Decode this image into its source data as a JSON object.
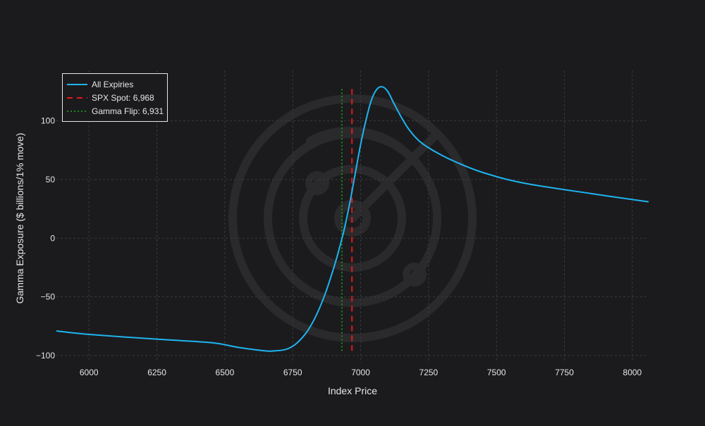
{
  "colors": {
    "background": "#1b1b1d",
    "gridline": "#3a3a3c",
    "text": "#e6e6e6",
    "all_expiries": "#1fb4f0",
    "spx_spot": "#e01b1b",
    "gamma_flip": "#1a8a1a",
    "watermark": "#2a2a2c"
  },
  "watermark_icon": "radar-logo-icon",
  "chart_data": {
    "type": "line",
    "title": "",
    "xlabel": "Index Price",
    "ylabel": "Gamma Exposure ($ billions/1% move)",
    "xlim": [
      5880,
      8060
    ],
    "ylim": [
      -106,
      143
    ],
    "xticks": [
      6000,
      6250,
      6500,
      6750,
      7000,
      7250,
      7500,
      7750,
      8000
    ],
    "xtick_labels": [
      "6000",
      "6250",
      "6500",
      "6750",
      "7000",
      "7250",
      "7500",
      "7750",
      "8000"
    ],
    "yticks": [
      -100,
      -50,
      0,
      50,
      100
    ],
    "ytick_labels": [
      "−100",
      "−50",
      "0",
      "50",
      "100"
    ],
    "grid": true,
    "legend_position": "top-left",
    "series": [
      {
        "name": "All Expiries",
        "style": "solid",
        "x": [
          5880,
          6000,
          6250,
          6450,
          6550,
          6650,
          6680,
          6720,
          6750,
          6780,
          6810,
          6840,
          6870,
          6900,
          6920,
          6940,
          6960,
          6980,
          7000,
          7020,
          7040,
          7060,
          7080,
          7100,
          7120,
          7150,
          7180,
          7220,
          7280,
          7350,
          7450,
          7600,
          7850,
          8060
        ],
        "y": [
          -79,
          -82,
          -86,
          -89,
          -93,
          -96,
          -96,
          -95,
          -92,
          -86,
          -77,
          -64,
          -47,
          -26,
          -10,
          8,
          30,
          55,
          80,
          101,
          118,
          127,
          129,
          125,
          116,
          103,
          92,
          82,
          73,
          65,
          56,
          47,
          38,
          31
        ]
      },
      {
        "name": "SPX Spot: 6,968",
        "style": "dash",
        "x": [
          6968,
          6968
        ],
        "y": [
          -96,
          129
        ]
      },
      {
        "name": "Gamma Flip: 6,931",
        "style": "dot",
        "x": [
          6931,
          6931
        ],
        "y": [
          -96,
          129
        ]
      }
    ]
  }
}
